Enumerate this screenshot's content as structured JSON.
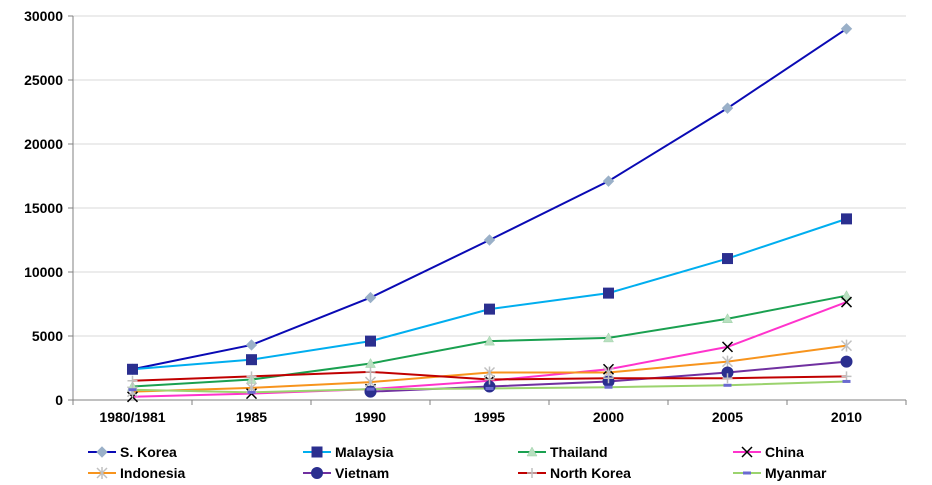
{
  "chart_data": {
    "type": "line",
    "title": "",
    "xlabel": "",
    "ylabel": "",
    "categories": [
      "1980/1981",
      "1985",
      "1990",
      "1995",
      "2000",
      "2005",
      "2010"
    ],
    "ylim": [
      0,
      30000
    ],
    "yticks": [
      "0",
      "5000",
      "10000",
      "15000",
      "20000",
      "25000",
      "30000"
    ],
    "grid": "horizontal",
    "legend_position": "bottom",
    "series": [
      {
        "name": "S. Korea",
        "color": "#0a0ab4",
        "marker": "diamond",
        "marker_color": "#9ab0c8",
        "values": [
          2400,
          4300,
          8000,
          12500,
          17100,
          22800,
          29000
        ]
      },
      {
        "name": "Malaysia",
        "color": "#00aeef",
        "marker": "square",
        "marker_color": "#2b2f8f",
        "values": [
          2400,
          3150,
          4600,
          7100,
          8350,
          11050,
          14150
        ]
      },
      {
        "name": "Thailand",
        "color": "#1aa050",
        "marker": "triangle",
        "marker_color": "#b8e0c0",
        "values": [
          1050,
          1600,
          2850,
          4600,
          4850,
          6350,
          8150
        ]
      },
      {
        "name": "China",
        "color": "#ff33cc",
        "marker": "x",
        "marker_color": "#000000",
        "values": [
          250,
          500,
          850,
          1500,
          2400,
          4150,
          7650
        ]
      },
      {
        "name": "Indonesia",
        "color": "#f7941d",
        "marker": "star",
        "marker_color": "#c0c0c0",
        "values": [
          650,
          950,
          1400,
          2150,
          2150,
          3000,
          4250
        ]
      },
      {
        "name": "Vietnam",
        "color": "#7030a0",
        "marker": "circle",
        "marker_color": "#2b2f8f",
        "values": [
          null,
          null,
          650,
          1050,
          1450,
          2150,
          3000
        ]
      },
      {
        "name": "North Korea",
        "color": "#c00000",
        "marker": "plus",
        "marker_color": "#c0c0c0",
        "values": [
          1500,
          1850,
          2200,
          1600,
          1700,
          1700,
          1850
        ]
      },
      {
        "name": "Myanmar",
        "color": "#9bd36e",
        "marker": "dash",
        "marker_color": "#6a6ad0",
        "values": [
          800,
          600,
          850,
          900,
          1000,
          1150,
          1450
        ]
      }
    ]
  }
}
